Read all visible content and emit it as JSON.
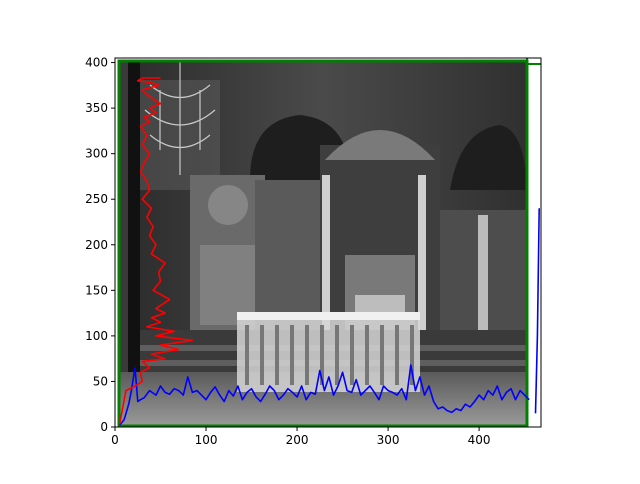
{
  "chart_data": {
    "type": "line",
    "title": "",
    "xlabel": "",
    "ylabel": "",
    "xlim": [
      0,
      468
    ],
    "ylim": [
      0,
      405
    ],
    "xticks": [
      0,
      100,
      200,
      300,
      400
    ],
    "yticks": [
      0,
      50,
      100,
      150,
      200,
      250,
      300,
      350,
      400
    ],
    "grid": false,
    "legend": "none",
    "background_image": "monochrome-church-interior-photograph",
    "colors": {
      "blue_series": "#0000ff",
      "red_series": "#ff0000",
      "green_frame": "#008000",
      "axes": "#000000"
    },
    "series": [
      {
        "color": "#0000ff",
        "orientation": "horizontal",
        "x": [
          5,
          10,
          15,
          18,
          22,
          25,
          28,
          32,
          38,
          45,
          50,
          55,
          60,
          65,
          70,
          75,
          80,
          85,
          90,
          95,
          100,
          105,
          110,
          115,
          120,
          125,
          130,
          135,
          140,
          145,
          150,
          155,
          160,
          165,
          170,
          175,
          180,
          185,
          190,
          195,
          200,
          205,
          210,
          215,
          220,
          225,
          230,
          235,
          240,
          245,
          250,
          255,
          260,
          265,
          270,
          275,
          280,
          285,
          290,
          295,
          300,
          305,
          310,
          315,
          320,
          325,
          330,
          335,
          340,
          345,
          350,
          355,
          360,
          365,
          370,
          375,
          380,
          385,
          390,
          395,
          400,
          405,
          410,
          415,
          420,
          425,
          430,
          435,
          440,
          445,
          450,
          455
        ],
        "y": [
          2,
          8,
          25,
          40,
          65,
          28,
          30,
          32,
          40,
          35,
          45,
          38,
          36,
          42,
          40,
          35,
          55,
          38,
          40,
          35,
          30,
          38,
          44,
          35,
          28,
          40,
          34,
          45,
          30,
          38,
          42,
          33,
          28,
          36,
          45,
          40,
          30,
          35,
          42,
          38,
          33,
          45,
          30,
          38,
          36,
          62,
          40,
          55,
          35,
          45,
          60,
          40,
          38,
          52,
          35,
          40,
          45,
          38,
          30,
          45,
          40,
          38,
          35,
          42,
          30,
          68,
          40,
          55,
          35,
          45,
          28,
          20,
          22,
          18,
          16,
          20,
          18,
          25,
          22,
          28,
          35,
          30,
          40,
          35,
          45,
          30,
          38,
          42,
          30,
          40,
          35,
          30
        ]
      },
      {
        "color": "#0000ff",
        "orientation": "horizontal",
        "x": [
          462,
          464,
          466
        ],
        "y": [
          15,
          100,
          240
        ]
      },
      {
        "color": "#ff0000",
        "orientation": "vertical",
        "x": [
          5,
          12,
          22,
          30,
          28,
          38,
          30,
          55,
          40,
          70,
          50,
          85,
          45,
          65,
          35,
          50,
          40,
          55,
          45,
          60,
          42,
          50,
          48,
          55,
          40,
          45,
          38,
          42,
          35,
          40,
          30,
          38,
          35,
          28,
          32,
          38,
          30,
          35,
          28,
          38,
          32,
          45,
          38,
          50,
          42,
          35,
          30,
          48,
          40,
          25,
          30,
          50
        ],
        "y": [
          3,
          40,
          45,
          50,
          60,
          65,
          72,
          75,
          80,
          85,
          90,
          95,
          100,
          105,
          110,
          115,
          120,
          125,
          130,
          140,
          150,
          160,
          170,
          180,
          190,
          200,
          210,
          220,
          230,
          240,
          250,
          260,
          270,
          280,
          290,
          300,
          310,
          320,
          330,
          335,
          340,
          345,
          350,
          355,
          360,
          365,
          370,
          375,
          378,
          380,
          383,
          383
        ]
      }
    ]
  }
}
